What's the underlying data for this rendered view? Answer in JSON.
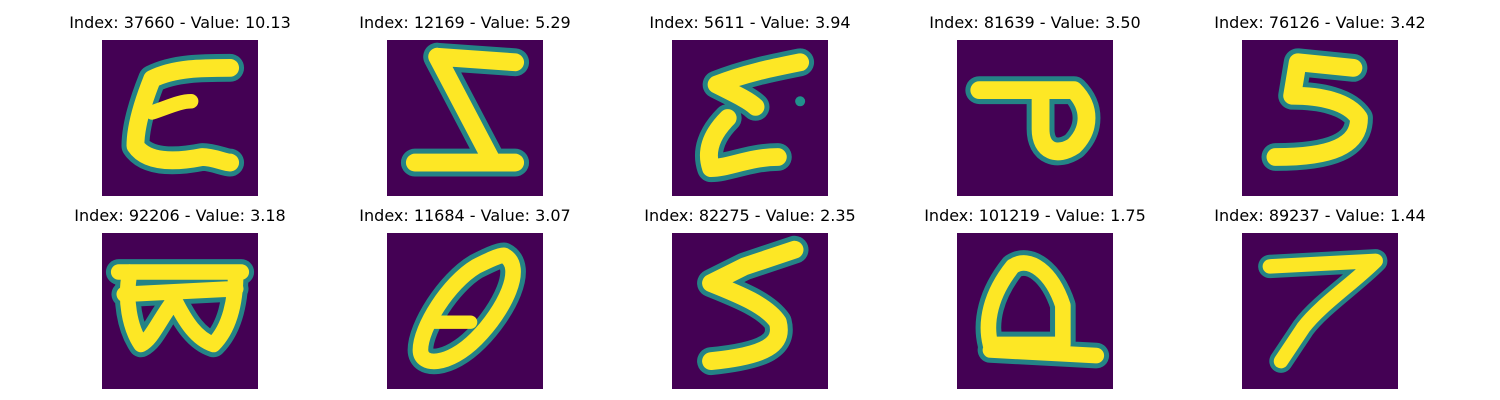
{
  "figure": {
    "background": "#ffffff",
    "colormap": {
      "low": "#440154",
      "mid": "#21918c",
      "high": "#fde725"
    },
    "panels": [
      {
        "title": "Index: 37660 - Value: 10.13",
        "index": 37660,
        "value": 10.13,
        "glyph": "C"
      },
      {
        "title": "Index: 12169 - Value: 5.29",
        "index": 12169,
        "value": 5.29,
        "glyph": "Z"
      },
      {
        "title": "Index: 5611 - Value: 3.94",
        "index": 5611,
        "value": 3.94,
        "glyph": "Z-curl"
      },
      {
        "title": "Index: 81639 - Value: 3.50",
        "index": 81639,
        "value": 3.5,
        "glyph": "P"
      },
      {
        "title": "Index: 76126 - Value: 3.42",
        "index": 76126,
        "value": 3.42,
        "glyph": "5"
      },
      {
        "title": "Index: 92206 - Value: 3.18",
        "index": 92206,
        "value": 3.18,
        "glyph": "W-boxed"
      },
      {
        "title": "Index: 11684 - Value: 3.07",
        "index": 11684,
        "value": 3.07,
        "glyph": "0-slash"
      },
      {
        "title": "Index: 82275 - Value: 2.35",
        "index": 82275,
        "value": 2.35,
        "glyph": "5"
      },
      {
        "title": "Index: 101219 - Value: 1.75",
        "index": 101219,
        "value": 1.75,
        "glyph": "Q"
      },
      {
        "title": "Index: 89237 - Value: 1.44",
        "index": 89237,
        "value": 1.44,
        "glyph": "7"
      }
    ]
  }
}
